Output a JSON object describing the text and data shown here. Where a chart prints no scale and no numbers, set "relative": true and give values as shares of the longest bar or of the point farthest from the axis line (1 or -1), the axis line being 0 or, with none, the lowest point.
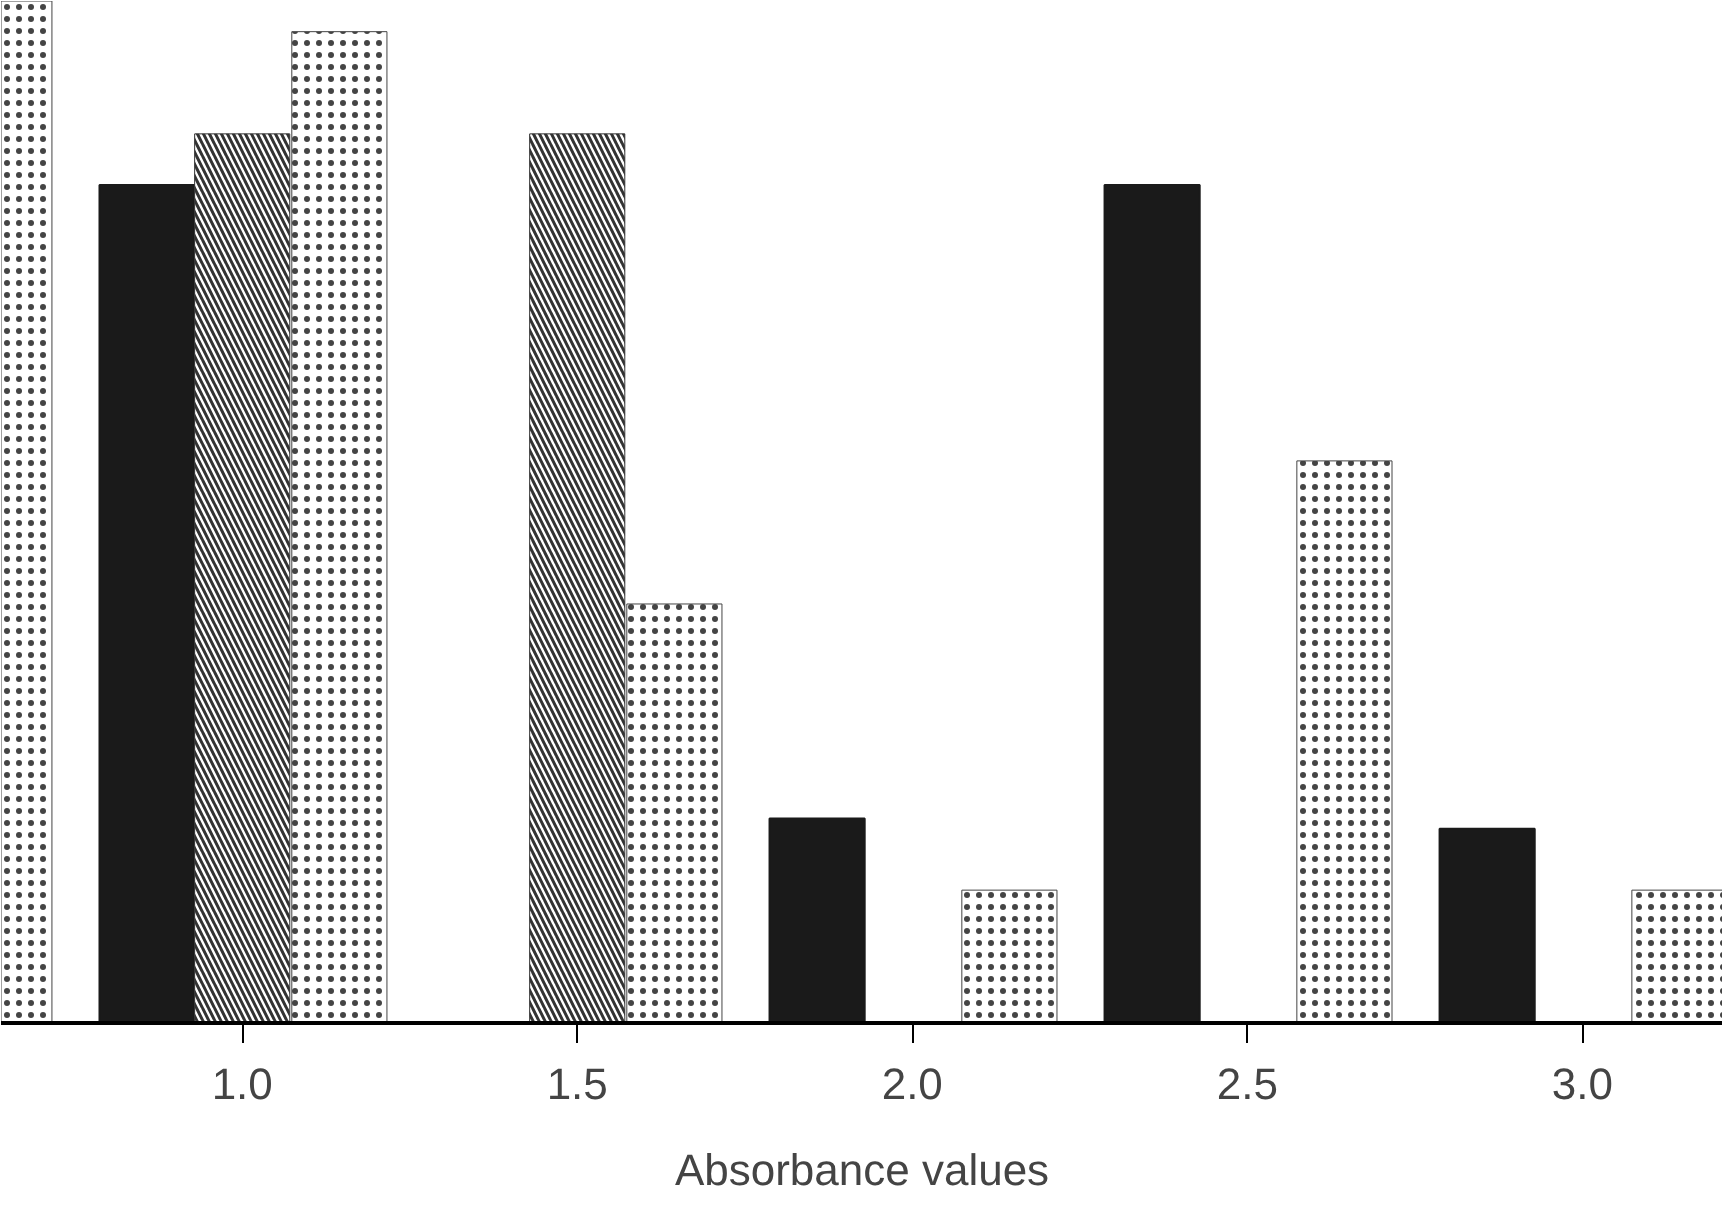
{
  "chart_data": {
    "type": "bar",
    "relative": true,
    "xlabel": "Absorbance values",
    "x": [
      1.0,
      1.5,
      2.0,
      2.5,
      3.0
    ],
    "xlim": [
      0.64,
      3.21
    ],
    "xticks": [
      {
        "value": 1.0,
        "label": "1.0"
      },
      {
        "value": 1.5,
        "label": "1.5"
      },
      {
        "value": 2.0,
        "label": "2.0"
      },
      {
        "value": 2.5,
        "label": "2.5"
      },
      {
        "value": 3.0,
        "label": "3.0"
      }
    ],
    "series": [
      {
        "color": "#1a1a1a",
        "values": [
          0.82,
          0,
          0.2,
          0.82,
          0.19
        ]
      },
      {
        "color": "#333333",
        "values": [
          0.87,
          0.87,
          0,
          0,
          0
        ]
      },
      {
        "color": "#444444",
        "x": [
          0.645,
          1.145,
          1.645,
          2.145,
          2.645,
          3.145
        ],
        "values": [
          1.0,
          0.97,
          0.41,
          0.13,
          0.55,
          0.13
        ]
      }
    ],
    "grid": false
  }
}
